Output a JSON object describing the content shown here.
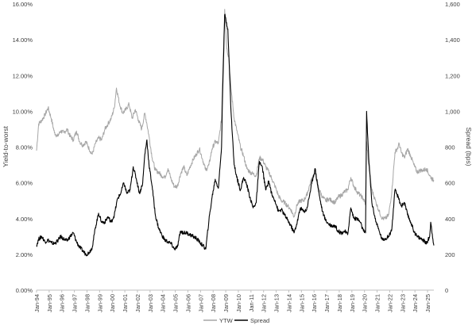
{
  "chart_data": {
    "type": "line",
    "title": "",
    "xlabel": "",
    "ylabel": "Yield-to-worst",
    "y2label": "Spread (bps)",
    "grid": false,
    "legend_position": "bottom",
    "ylim": [
      0,
      16
    ],
    "y2lim": [
      0,
      1600
    ],
    "y_ticks": [
      "0.00%",
      "2.00%",
      "4.00%",
      "6.00%",
      "8.00%",
      "10.00%",
      "12.00%",
      "14.00%",
      "16.00%"
    ],
    "y2_ticks": [
      "0",
      "200",
      "400",
      "600",
      "800",
      "1,000",
      "1,200",
      "1,400",
      "1,600"
    ],
    "x_ticks": [
      "Jan-94",
      "Jan-95",
      "Jan-96",
      "Jan-97",
      "Jan-98",
      "Jan-99",
      "Jan-00",
      "Jan-01",
      "Jan-02",
      "Jan-03",
      "Jan-04",
      "Jan-05",
      "Jan-06",
      "Jan-07",
      "Jan-08",
      "Jan-09",
      "Jan-10",
      "Jan-11",
      "Jan-12",
      "Jan-13",
      "Jan-14",
      "Jan-15",
      "Jan-16",
      "Jan-17",
      "Jan-18",
      "Jan-19",
      "Jan-20",
      "Jan-21",
      "Jan-22",
      "Jan-23",
      "Jan-24",
      "Jan-25"
    ],
    "x_range": [
      "1994-01",
      "2025-07"
    ],
    "series": [
      {
        "name": "YTW",
        "axis": "left",
        "color": "#a6a6a6",
        "points": [
          [
            "1994-01",
            7.8
          ],
          [
            "1994-03",
            9.3
          ],
          [
            "1994-06",
            9.5
          ],
          [
            "1994-09",
            9.8
          ],
          [
            "1994-12",
            10.2
          ],
          [
            "1995-03",
            9.6
          ],
          [
            "1995-06",
            8.8
          ],
          [
            "1995-09",
            8.6
          ],
          [
            "1995-12",
            8.9
          ],
          [
            "1996-03",
            8.8
          ],
          [
            "1996-06",
            9.0
          ],
          [
            "1996-09",
            8.6
          ],
          [
            "1996-12",
            8.4
          ],
          [
            "1997-03",
            8.9
          ],
          [
            "1997-06",
            8.3
          ],
          [
            "1997-09",
            8.1
          ],
          [
            "1997-12",
            8.3
          ],
          [
            "1998-03",
            7.9
          ],
          [
            "1998-06",
            7.6
          ],
          [
            "1998-09",
            8.2
          ],
          [
            "1998-12",
            8.5
          ],
          [
            "1999-03",
            8.4
          ],
          [
            "1999-06",
            9.0
          ],
          [
            "1999-09",
            9.3
          ],
          [
            "1999-12",
            9.6
          ],
          [
            "2000-03",
            10.2
          ],
          [
            "2000-05",
            11.3
          ],
          [
            "2000-08",
            10.4
          ],
          [
            "2000-11",
            9.9
          ],
          [
            "2001-02",
            10.1
          ],
          [
            "2001-05",
            10.4
          ],
          [
            "2001-08",
            9.6
          ],
          [
            "2001-11",
            10.1
          ],
          [
            "2002-02",
            9.5
          ],
          [
            "2002-05",
            9.0
          ],
          [
            "2002-08",
            9.9
          ],
          [
            "2002-10",
            9.3
          ],
          [
            "2002-12",
            8.6
          ],
          [
            "2003-03",
            7.4
          ],
          [
            "2003-06",
            6.7
          ],
          [
            "2003-09",
            6.6
          ],
          [
            "2003-12",
            6.4
          ],
          [
            "2004-03",
            6.3
          ],
          [
            "2004-06",
            6.8
          ],
          [
            "2004-09",
            6.2
          ],
          [
            "2004-12",
            5.8
          ],
          [
            "2005-03",
            5.8
          ],
          [
            "2005-06",
            6.5
          ],
          [
            "2005-09",
            6.9
          ],
          [
            "2005-12",
            6.4
          ],
          [
            "2006-03",
            6.9
          ],
          [
            "2006-06",
            7.3
          ],
          [
            "2006-09",
            7.6
          ],
          [
            "2006-12",
            7.9
          ],
          [
            "2007-03",
            7.3
          ],
          [
            "2007-06",
            6.7
          ],
          [
            "2007-09",
            7.0
          ],
          [
            "2007-12",
            7.9
          ],
          [
            "2008-03",
            8.3
          ],
          [
            "2008-06",
            8.2
          ],
          [
            "2008-09",
            9.6
          ],
          [
            "2008-10",
            12.0
          ],
          [
            "2008-12",
            15.7
          ],
          [
            "2009-02",
            13.5
          ],
          [
            "2009-04",
            13.0
          ],
          [
            "2009-06",
            11.3
          ],
          [
            "2009-09",
            9.6
          ],
          [
            "2009-12",
            8.8
          ],
          [
            "2010-03",
            8.0
          ],
          [
            "2010-06",
            7.5
          ],
          [
            "2010-09",
            6.8
          ],
          [
            "2010-12",
            6.6
          ],
          [
            "2011-03",
            6.5
          ],
          [
            "2011-06",
            6.4
          ],
          [
            "2011-09",
            7.4
          ],
          [
            "2011-12",
            7.3
          ],
          [
            "2012-03",
            6.9
          ],
          [
            "2012-06",
            6.6
          ],
          [
            "2012-09",
            6.2
          ],
          [
            "2012-12",
            5.8
          ],
          [
            "2013-03",
            5.3
          ],
          [
            "2013-06",
            5.0
          ],
          [
            "2013-09",
            4.9
          ],
          [
            "2013-12",
            4.7
          ],
          [
            "2014-03",
            4.5
          ],
          [
            "2014-06",
            4.1
          ],
          [
            "2014-09",
            4.8
          ],
          [
            "2014-12",
            5.0
          ],
          [
            "2015-03",
            5.0
          ],
          [
            "2015-06",
            5.3
          ],
          [
            "2015-09",
            5.9
          ],
          [
            "2015-12",
            6.4
          ],
          [
            "2016-02",
            6.5
          ],
          [
            "2016-06",
            5.6
          ],
          [
            "2016-09",
            5.2
          ],
          [
            "2016-12",
            5.0
          ],
          [
            "2017-03",
            5.1
          ],
          [
            "2017-06",
            5.0
          ],
          [
            "2017-09",
            4.9
          ],
          [
            "2017-12",
            5.2
          ],
          [
            "2018-03",
            5.3
          ],
          [
            "2018-06",
            5.5
          ],
          [
            "2018-09",
            5.6
          ],
          [
            "2018-12",
            6.3
          ],
          [
            "2019-03",
            5.8
          ],
          [
            "2019-06",
            5.5
          ],
          [
            "2019-09",
            5.3
          ],
          [
            "2019-12",
            5.1
          ],
          [
            "2020-02",
            4.8
          ],
          [
            "2020-03",
            8.3
          ],
          [
            "2020-05",
            7.0
          ],
          [
            "2020-08",
            5.6
          ],
          [
            "2020-12",
            4.9
          ],
          [
            "2021-03",
            4.4
          ],
          [
            "2021-06",
            4.0
          ],
          [
            "2021-09",
            4.0
          ],
          [
            "2021-12",
            4.2
          ],
          [
            "2022-03",
            5.5
          ],
          [
            "2022-06",
            7.7
          ],
          [
            "2022-09",
            8.0
          ],
          [
            "2022-10",
            8.2
          ],
          [
            "2022-12",
            7.7
          ],
          [
            "2023-03",
            7.4
          ],
          [
            "2023-06",
            7.9
          ],
          [
            "2023-09",
            7.5
          ],
          [
            "2023-12",
            7.0
          ],
          [
            "2024-03",
            6.6
          ],
          [
            "2024-06",
            6.7
          ],
          [
            "2024-09",
            6.7
          ],
          [
            "2024-12",
            6.8
          ],
          [
            "2025-03",
            6.4
          ],
          [
            "2025-07",
            6.1
          ]
        ]
      },
      {
        "name": "Spread",
        "axis": "right",
        "color": "#000000",
        "points": [
          [
            "1994-01",
            250
          ],
          [
            "1994-03",
            285
          ],
          [
            "1994-06",
            300
          ],
          [
            "1994-09",
            270
          ],
          [
            "1994-12",
            280
          ],
          [
            "1995-03",
            265
          ],
          [
            "1995-06",
            260
          ],
          [
            "1995-09",
            275
          ],
          [
            "1995-12",
            300
          ],
          [
            "1996-03",
            285
          ],
          [
            "1996-06",
            275
          ],
          [
            "1996-09",
            300
          ],
          [
            "1996-12",
            320
          ],
          [
            "1997-03",
            270
          ],
          [
            "1997-06",
            240
          ],
          [
            "1997-09",
            220
          ],
          [
            "1997-12",
            200
          ],
          [
            "1998-03",
            210
          ],
          [
            "1998-06",
            240
          ],
          [
            "1998-09",
            350
          ],
          [
            "1998-12",
            430
          ],
          [
            "1999-03",
            380
          ],
          [
            "1999-06",
            380
          ],
          [
            "1999-09",
            410
          ],
          [
            "1999-12",
            380
          ],
          [
            "2000-03",
            420
          ],
          [
            "2000-06",
            510
          ],
          [
            "2000-09",
            540
          ],
          [
            "2000-12",
            600
          ],
          [
            "2001-03",
            540
          ],
          [
            "2001-06",
            560
          ],
          [
            "2001-09",
            690
          ],
          [
            "2001-12",
            620
          ],
          [
            "2002-03",
            540
          ],
          [
            "2002-06",
            600
          ],
          [
            "2002-08",
            760
          ],
          [
            "2002-10",
            840
          ],
          [
            "2002-12",
            700
          ],
          [
            "2003-03",
            580
          ],
          [
            "2003-06",
            420
          ],
          [
            "2003-09",
            350
          ],
          [
            "2003-12",
            310
          ],
          [
            "2004-03",
            280
          ],
          [
            "2004-06",
            270
          ],
          [
            "2004-09",
            260
          ],
          [
            "2004-12",
            230
          ],
          [
            "2005-03",
            240
          ],
          [
            "2005-06",
            330
          ],
          [
            "2005-09",
            320
          ],
          [
            "2005-12",
            320
          ],
          [
            "2006-03",
            310
          ],
          [
            "2006-06",
            300
          ],
          [
            "2006-09",
            290
          ],
          [
            "2006-12",
            270
          ],
          [
            "2007-03",
            250
          ],
          [
            "2007-06",
            230
          ],
          [
            "2007-09",
            390
          ],
          [
            "2007-12",
            520
          ],
          [
            "2008-03",
            620
          ],
          [
            "2008-06",
            570
          ],
          [
            "2008-09",
            800
          ],
          [
            "2008-10",
            1100
          ],
          [
            "2008-12",
            1540
          ],
          [
            "2009-03",
            1460
          ],
          [
            "2009-06",
            1000
          ],
          [
            "2009-09",
            700
          ],
          [
            "2009-12",
            620
          ],
          [
            "2010-03",
            560
          ],
          [
            "2010-06",
            630
          ],
          [
            "2010-09",
            590
          ],
          [
            "2010-12",
            520
          ],
          [
            "2011-03",
            460
          ],
          [
            "2011-06",
            490
          ],
          [
            "2011-09",
            720
          ],
          [
            "2011-12",
            680
          ],
          [
            "2012-03",
            560
          ],
          [
            "2012-06",
            610
          ],
          [
            "2012-09",
            530
          ],
          [
            "2012-12",
            500
          ],
          [
            "2013-03",
            440
          ],
          [
            "2013-06",
            450
          ],
          [
            "2013-09",
            420
          ],
          [
            "2013-12",
            390
          ],
          [
            "2014-03",
            360
          ],
          [
            "2014-06",
            320
          ],
          [
            "2014-09",
            380
          ],
          [
            "2014-12",
            460
          ],
          [
            "2015-03",
            440
          ],
          [
            "2015-06",
            450
          ],
          [
            "2015-09",
            540
          ],
          [
            "2015-12",
            630
          ],
          [
            "2016-02",
            680
          ],
          [
            "2016-06",
            530
          ],
          [
            "2016-09",
            440
          ],
          [
            "2016-12",
            390
          ],
          [
            "2017-03",
            370
          ],
          [
            "2017-06",
            360
          ],
          [
            "2017-09",
            360
          ],
          [
            "2017-12",
            330
          ],
          [
            "2018-03",
            320
          ],
          [
            "2018-06",
            330
          ],
          [
            "2018-09",
            310
          ],
          [
            "2018-12",
            460
          ],
          [
            "2019-03",
            400
          ],
          [
            "2019-06",
            400
          ],
          [
            "2019-09",
            380
          ],
          [
            "2019-12",
            330
          ],
          [
            "2020-02",
            320
          ],
          [
            "2020-03",
            1000
          ],
          [
            "2020-05",
            740
          ],
          [
            "2020-08",
            490
          ],
          [
            "2020-12",
            380
          ],
          [
            "2021-03",
            330
          ],
          [
            "2021-06",
            280
          ],
          [
            "2021-09",
            290
          ],
          [
            "2021-12",
            300
          ],
          [
            "2022-03",
            340
          ],
          [
            "2022-06",
            560
          ],
          [
            "2022-09",
            520
          ],
          [
            "2022-12",
            470
          ],
          [
            "2023-03",
            490
          ],
          [
            "2023-06",
            420
          ],
          [
            "2023-09",
            380
          ],
          [
            "2023-12",
            330
          ],
          [
            "2024-03",
            300
          ],
          [
            "2024-06",
            290
          ],
          [
            "2024-09",
            280
          ],
          [
            "2024-12",
            260
          ],
          [
            "2025-03",
            300
          ],
          [
            "2025-04",
            380
          ],
          [
            "2025-07",
            250
          ]
        ]
      }
    ]
  },
  "legend": [
    {
      "label": "YTW",
      "color": "#a6a6a6"
    },
    {
      "label": "Spread",
      "color": "#000000"
    }
  ]
}
